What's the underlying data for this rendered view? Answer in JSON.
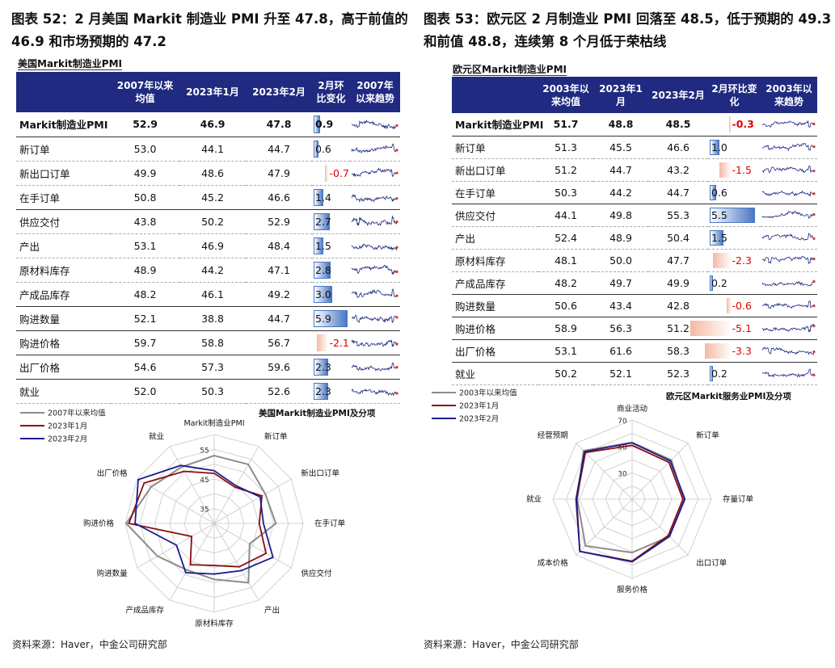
{
  "left": {
    "fig_title": "图表 52：2 月美国 Markit 制造业 PMI 升至 47.8，高于前值的 46.9 和市场预期的 47.2",
    "table_title": "美国Markit制造业PMI",
    "headers": [
      "",
      "2007年以来均值",
      "2023年1月",
      "2023年2月",
      "2月环比变化",
      "2007年以来趋势"
    ],
    "rows": [
      {
        "label": "Markit制造业PMI",
        "avg": "52.9",
        "jan": "46.9",
        "feb": "47.8",
        "chg": "0.9",
        "chg_value": 0.9
      },
      {
        "label": "新订单",
        "avg": "53.0",
        "jan": "44.1",
        "feb": "44.7",
        "chg": "0.6",
        "chg_value": 0.6
      },
      {
        "label": "新出口订单",
        "avg": "49.9",
        "jan": "48.6",
        "feb": "47.9",
        "chg": "-0.7",
        "chg_value": -0.7
      },
      {
        "label": "在手订单",
        "avg": "50.8",
        "jan": "45.2",
        "feb": "46.6",
        "chg": "1.4",
        "chg_value": 1.4
      },
      {
        "label": "供应交付",
        "avg": "43.8",
        "jan": "50.2",
        "feb": "52.9",
        "chg": "2.7",
        "chg_value": 2.7
      },
      {
        "label": "产出",
        "avg": "53.1",
        "jan": "46.9",
        "feb": "48.4",
        "chg": "1.5",
        "chg_value": 1.5
      },
      {
        "label": "原材料库存",
        "avg": "48.9",
        "jan": "44.2",
        "feb": "47.1",
        "chg": "2.8",
        "chg_value": 2.8
      },
      {
        "label": "产成品库存",
        "avg": "48.2",
        "jan": "46.1",
        "feb": "49.2",
        "chg": "3.0",
        "chg_value": 3.0
      },
      {
        "label": "购进数量",
        "avg": "52.1",
        "jan": "38.8",
        "feb": "44.7",
        "chg": "5.9",
        "chg_value": 5.9
      },
      {
        "label": "购进价格",
        "avg": "59.7",
        "jan": "58.8",
        "feb": "56.7",
        "chg": "-2.1",
        "chg_value": -2.1
      },
      {
        "label": "出厂价格",
        "avg": "54.6",
        "jan": "57.3",
        "feb": "59.6",
        "chg": "2.3",
        "chg_value": 2.3
      },
      {
        "label": "就业",
        "avg": "52.0",
        "jan": "50.3",
        "feb": "52.6",
        "chg": "2.3",
        "chg_value": 2.3
      }
    ],
    "source": "资料来源：Haver，中金公司研究部"
  },
  "right": {
    "fig_title": "图表 53：欧元区 2 月制造业 PMI 回落至 48.5，低于预期的 49.3 和前值 48.8，连续第 8 个月低于荣枯线",
    "table_title": "欧元区Markit制造业PMI",
    "headers": [
      "",
      "2003年以来均值",
      "2023年1月",
      "2023年2月",
      "2月环比变化",
      "2003年以来趋势"
    ],
    "rows": [
      {
        "label": "Markit制造业PMI",
        "avg": "51.7",
        "jan": "48.8",
        "feb": "48.5",
        "chg": "-0.3",
        "chg_value": -0.3
      },
      {
        "label": "新订单",
        "avg": "51.3",
        "jan": "45.5",
        "feb": "46.6",
        "chg": "1.0",
        "chg_value": 1.0
      },
      {
        "label": "新出口订单",
        "avg": "51.2",
        "jan": "44.7",
        "feb": "43.2",
        "chg": "-1.5",
        "chg_value": -1.5
      },
      {
        "label": "在手订单",
        "avg": "50.3",
        "jan": "44.2",
        "feb": "44.7",
        "chg": "0.6",
        "chg_value": 0.6
      },
      {
        "label": "供应交付",
        "avg": "44.1",
        "jan": "49.8",
        "feb": "55.3",
        "chg": "5.5",
        "chg_value": 5.5
      },
      {
        "label": "产出",
        "avg": "52.4",
        "jan": "48.9",
        "feb": "50.4",
        "chg": "1.5",
        "chg_value": 1.5
      },
      {
        "label": "原材料库存",
        "avg": "48.1",
        "jan": "50.0",
        "feb": "47.7",
        "chg": "-2.3",
        "chg_value": -2.3
      },
      {
        "label": "产成品库存",
        "avg": "48.2",
        "jan": "49.7",
        "feb": "49.9",
        "chg": "0.2",
        "chg_value": 0.2
      },
      {
        "label": "购进数量",
        "avg": "50.6",
        "jan": "43.4",
        "feb": "42.8",
        "chg": "-0.6",
        "chg_value": -0.6
      },
      {
        "label": "购进价格",
        "avg": "58.9",
        "jan": "56.3",
        "feb": "51.2",
        "chg": "-5.1",
        "chg_value": -5.1
      },
      {
        "label": "出厂价格",
        "avg": "53.1",
        "jan": "61.6",
        "feb": "58.3",
        "chg": "-3.3",
        "chg_value": -3.3
      },
      {
        "label": "就业",
        "avg": "50.2",
        "jan": "52.1",
        "feb": "52.3",
        "chg": "0.2",
        "chg_value": 0.2
      }
    ],
    "source": "资料来源：Haver，中金公司研究部"
  },
  "colors": {
    "header_bg": "#1f2a80",
    "positive_bar": "#4a77c4",
    "negative_bar": "#f4b9a4",
    "negative_text": "#e00000",
    "sparkline": "#1f2a80",
    "series_avg": "#8c8c8c",
    "series_jan": "#8b0d0d",
    "series_feb": "#1c1c8c"
  },
  "chart_data": [
    {
      "type": "radar",
      "title": "美国Markit制造业PMI及分项",
      "categories": [
        "Markit制造业PMI",
        "新订单",
        "新出口订单",
        "在手订单",
        "供应交付",
        "产出",
        "原材料库存",
        "产成品库存",
        "购进数量",
        "购进价格",
        "出厂价格",
        "就业"
      ],
      "series": [
        {
          "name": "2007年以来均值",
          "values": [
            52.9,
            53.0,
            49.9,
            50.8,
            43.8,
            53.1,
            48.9,
            48.2,
            52.1,
            59.7,
            54.6,
            52.0
          ]
        },
        {
          "name": "2023年1月",
          "values": [
            46.9,
            44.1,
            48.6,
            45.2,
            50.2,
            46.9,
            44.2,
            46.1,
            38.8,
            58.8,
            57.3,
            50.3
          ]
        },
        {
          "name": "2023年2月",
          "values": [
            47.8,
            44.7,
            47.9,
            46.6,
            52.9,
            48.4,
            47.1,
            49.2,
            44.7,
            56.7,
            59.6,
            52.6
          ]
        }
      ],
      "rlim": [
        30,
        60
      ],
      "ticks": [
        35,
        45,
        55
      ],
      "grid": true,
      "legend": "top-left"
    },
    {
      "type": "radar",
      "title": "欧元区Markit服务业PMI及分项",
      "categories": [
        "商业活动",
        "新订单",
        "存量订单",
        "出口订单",
        "服务价格",
        "成本价格",
        "就业",
        "经营预期"
      ],
      "series": [
        {
          "name": "2003年以来均值",
          "values": [
            53.0,
            52.0,
            49.0,
            50.0,
            50.5,
            60.0,
            51.5,
            62.0
          ]
        },
        {
          "name": "2023年1月",
          "values": [
            50.8,
            49.5,
            48.5,
            48.8,
            57.0,
            66.0,
            52.0,
            60.0
          ]
        },
        {
          "name": "2023年2月",
          "values": [
            52.7,
            51.0,
            50.0,
            50.0,
            57.5,
            66.0,
            52.5,
            61.0
          ]
        }
      ],
      "rlim": [
        10,
        70
      ],
      "ticks": [
        30,
        50,
        70
      ],
      "grid": true,
      "legend": "top-left"
    }
  ]
}
